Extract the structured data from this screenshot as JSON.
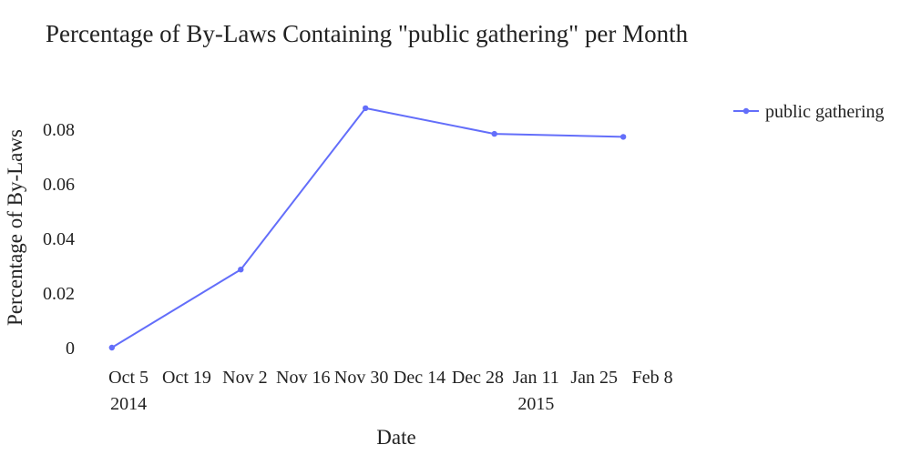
{
  "chart_data": {
    "type": "line",
    "title": "Percentage of By-Laws Containing \"public gathering\" per Month",
    "xlabel": "Date",
    "ylabel": "Percentage of By-Laws",
    "x_ticks": [
      {
        "date": "2014-10-05",
        "label": "Oct 5",
        "sublabel": "2014"
      },
      {
        "date": "2014-10-19",
        "label": "Oct 19"
      },
      {
        "date": "2014-11-02",
        "label": "Nov 2"
      },
      {
        "date": "2014-11-16",
        "label": "Nov 16"
      },
      {
        "date": "2014-11-30",
        "label": "Nov 30"
      },
      {
        "date": "2014-12-14",
        "label": "Dec 14"
      },
      {
        "date": "2014-12-28",
        "label": "Dec 28"
      },
      {
        "date": "2015-01-11",
        "label": "Jan 11",
        "sublabel": "2015"
      },
      {
        "date": "2015-01-25",
        "label": "Jan 25"
      },
      {
        "date": "2015-02-08",
        "label": "Feb 8"
      }
    ],
    "y_ticks": [
      {
        "value": 0,
        "label": "0"
      },
      {
        "value": 0.02,
        "label": "0.02"
      },
      {
        "value": 0.04,
        "label": "0.04"
      },
      {
        "value": 0.06,
        "label": "0.06"
      },
      {
        "value": 0.08,
        "label": "0.08"
      }
    ],
    "xlim": [
      "2014-09-26",
      "2015-02-22"
    ],
    "ylim": [
      -0.006,
      0.094
    ],
    "grid": false,
    "legend_position": "top-right",
    "series": [
      {
        "name": "public gathering",
        "color": "#636efa",
        "points": [
          {
            "x": "2014-10-01",
            "y": 0.0
          },
          {
            "x": "2014-11-01",
            "y": 0.0286
          },
          {
            "x": "2014-12-01",
            "y": 0.0877
          },
          {
            "x": "2015-01-01",
            "y": 0.0783
          },
          {
            "x": "2015-02-01",
            "y": 0.0772
          }
        ]
      }
    ]
  }
}
